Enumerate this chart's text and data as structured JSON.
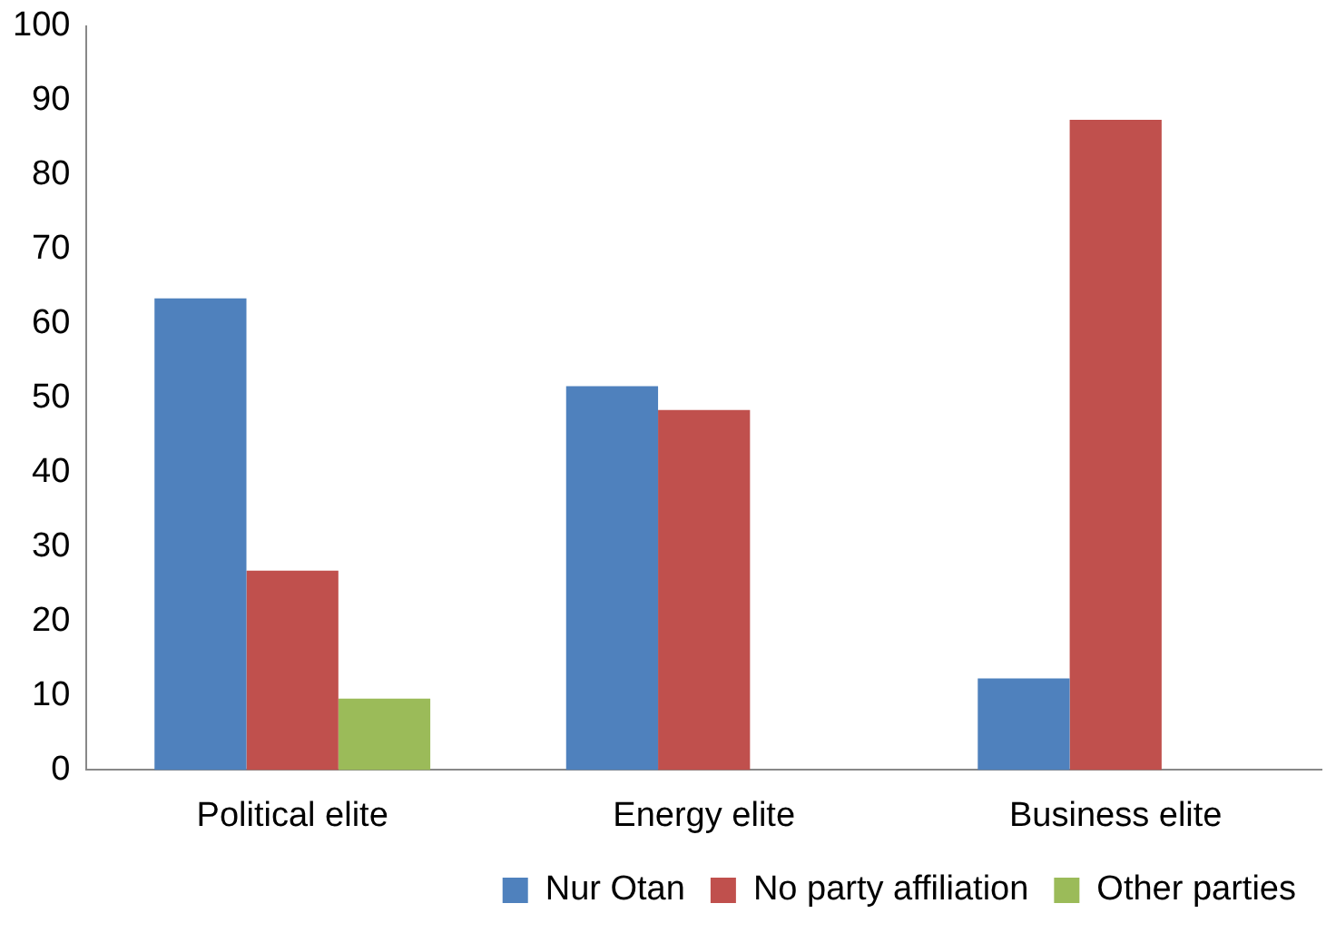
{
  "chart_data": {
    "type": "bar",
    "categories": [
      "Political elite",
      "Energy elite",
      "Business elite"
    ],
    "series": [
      {
        "name": "Nur Otan",
        "color": "#4f81bd",
        "values": [
          63.4,
          51.6,
          12.3
        ]
      },
      {
        "name": "No party affiliation",
        "color": "#c0504d",
        "values": [
          26.8,
          48.4,
          87.4
        ]
      },
      {
        "name": "Other parties",
        "color": "#9bbb59",
        "values": [
          9.6,
          null,
          null
        ]
      }
    ],
    "ylim": [
      0,
      100
    ],
    "yticks": [
      0,
      10,
      20,
      30,
      40,
      50,
      60,
      70,
      80,
      90,
      100
    ],
    "grid": false,
    "legend": "bottom"
  }
}
